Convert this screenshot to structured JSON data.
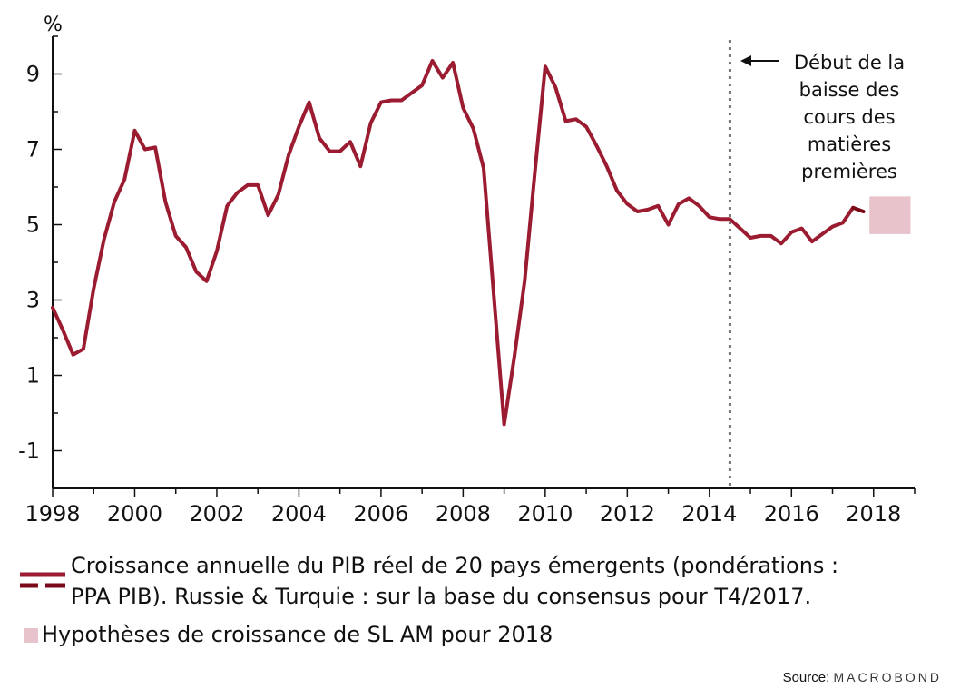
{
  "chart_data": {
    "type": "line",
    "y_unit_label": "%",
    "xlim": [
      1998,
      2019
    ],
    "ylim": [
      -2,
      10
    ],
    "x_ticks": [
      1998,
      2000,
      2002,
      2004,
      2006,
      2008,
      2010,
      2012,
      2014,
      2016,
      2018
    ],
    "y_ticks": [
      -1,
      1,
      3,
      5,
      7,
      9
    ],
    "colors": {
      "series": "#9B1B30",
      "series_dashed": "#7A0A1A",
      "band": "#E8C3CB",
      "vline": "#777777"
    },
    "series": [
      {
        "style": "solid",
        "x": [
          1998.0,
          1998.25,
          1998.5,
          1998.75,
          1999.0,
          1999.25,
          1999.5,
          1999.75,
          2000.0,
          2000.25,
          2000.5,
          2000.75,
          2001.0,
          2001.25,
          2001.5,
          2001.75,
          2002.0,
          2002.25,
          2002.5,
          2002.75,
          2003.0,
          2003.25,
          2003.5,
          2003.75,
          2004.0,
          2004.25,
          2004.5,
          2004.75,
          2005.0,
          2005.25,
          2005.5,
          2005.75,
          2006.0,
          2006.25,
          2006.5,
          2006.75,
          2007.0,
          2007.25,
          2007.5,
          2007.75,
          2008.0,
          2008.25,
          2008.5,
          2008.75,
          2009.0,
          2009.25,
          2009.5,
          2009.75,
          2010.0,
          2010.25,
          2010.5,
          2010.75,
          2011.0,
          2011.25,
          2011.5,
          2011.75,
          2012.0,
          2012.25,
          2012.5,
          2012.75,
          2013.0,
          2013.25,
          2013.5,
          2013.75,
          2014.0,
          2014.25,
          2014.5,
          2014.75,
          2015.0,
          2015.25,
          2015.5,
          2015.75,
          2016.0,
          2016.25,
          2016.5,
          2016.75,
          2017.0,
          2017.25,
          2017.5
        ],
        "values": [
          2.8,
          2.2,
          1.55,
          1.7,
          3.3,
          4.6,
          5.6,
          6.2,
          7.5,
          7.0,
          7.05,
          5.6,
          4.7,
          4.4,
          3.75,
          3.5,
          4.3,
          5.5,
          5.85,
          6.05,
          6.05,
          5.25,
          5.8,
          6.85,
          7.6,
          8.25,
          7.3,
          6.95,
          6.95,
          7.2,
          6.55,
          7.7,
          8.25,
          8.3,
          8.3,
          8.5,
          8.7,
          9.35,
          8.9,
          9.3,
          8.1,
          7.55,
          6.5,
          3.1,
          -0.3,
          1.5,
          3.5,
          6.4,
          9.2,
          8.65,
          7.75,
          7.8,
          7.6,
          7.1,
          6.55,
          5.9,
          5.55,
          5.35,
          5.4,
          5.5,
          5.0,
          5.55,
          5.7,
          5.5,
          5.2,
          5.15,
          5.15,
          4.9,
          4.65,
          4.7,
          4.7,
          4.5,
          4.8,
          4.9,
          4.55,
          4.75,
          4.95,
          5.05,
          5.45
        ]
      },
      {
        "style": "dashed",
        "x": [
          2017.5,
          2017.75
        ],
        "values": [
          5.45,
          5.35
        ]
      }
    ],
    "bands": [
      {
        "x": [
          2017.9,
          2018.9
        ],
        "y": [
          4.75,
          5.75
        ]
      }
    ],
    "vlines": [
      {
        "x": 2014.5,
        "style": "dotted"
      }
    ],
    "annotation": {
      "arrow": "←",
      "lines": [
        "Début de la",
        "baisse des",
        "cours des",
        "matières",
        "premières"
      ]
    }
  },
  "legend": {
    "series_line1": "Croissance annuelle du PIB réel de 20 pays émergents (pondérations :",
    "series_line2": "PPA PIB). Russie & Turquie : sur la base du consensus pour T4/2017.",
    "band_label": "Hypothèses de croissance de SL AM pour 2018"
  },
  "source": {
    "label": "Source:",
    "brand": "MACROBOND"
  }
}
